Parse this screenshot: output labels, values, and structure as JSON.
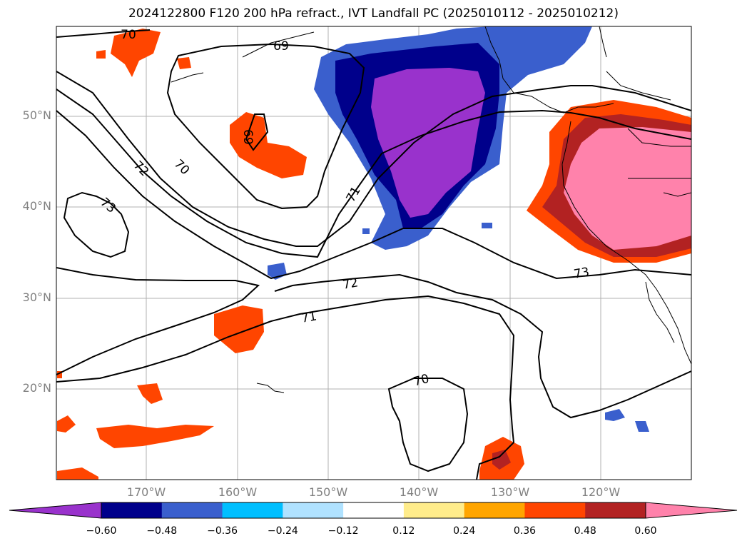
{
  "title": "2024122800 F120 200 hPa refract., IVT Landfall PC (2025010112 - 2025010212)",
  "lat_ticks": [
    "50°N",
    "40°N",
    "30°N",
    "20°N"
  ],
  "lon_ticks": [
    "170°W",
    "160°W",
    "150°W",
    "140°W",
    "130°W",
    "120°W"
  ],
  "contour_labels": [
    "70",
    "69",
    "69",
    "72",
    "70",
    "73",
    "71",
    "72",
    "73",
    "71",
    "70"
  ],
  "colorbar": {
    "colors": [
      "#9932cc",
      "#00008b",
      "#3a5fcd",
      "#00bfff",
      "#b0e2ff",
      "#ffffff",
      "#ffec8b",
      "#ffa500",
      "#ff4500",
      "#b22222",
      "#ff82ab"
    ],
    "labels": [
      "−0.60",
      "−0.48",
      "−0.36",
      "−0.24",
      "−0.12",
      "0.12",
      "0.24",
      "0.36",
      "0.48",
      "0.60"
    ]
  }
}
